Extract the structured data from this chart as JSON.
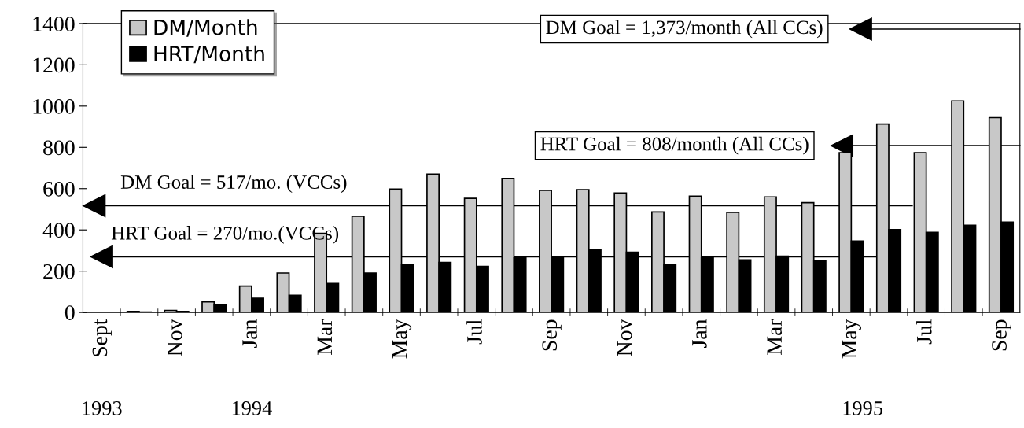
{
  "chart_data": {
    "type": "bar",
    "categories": [
      "Sept",
      null,
      "Nov",
      null,
      "Jan",
      null,
      "Mar",
      null,
      "May",
      null,
      "Jul",
      null,
      "Sep",
      null,
      "Nov",
      null,
      "Jan",
      null,
      "Mar",
      null,
      "May",
      null,
      "Jul",
      null,
      "Sep"
    ],
    "series": [
      {
        "name": "DM/Month",
        "color": "#c8c8c8",
        "values": [
          null,
          5,
          10,
          51,
          128,
          191,
          383,
          466,
          598,
          670,
          553,
          649,
          592,
          595,
          579,
          487,
          563,
          485,
          560,
          532,
          774,
          913,
          774,
          1025,
          944
        ]
      },
      {
        "name": "HRT/Month",
        "color": "#000000",
        "values": [
          null,
          2,
          5,
          35,
          69,
          83,
          140,
          191,
          230,
          242,
          223,
          264,
          264,
          303,
          292,
          232,
          264,
          255,
          273,
          251,
          346,
          401,
          388,
          422,
          438
        ]
      }
    ],
    "ylim": [
      0,
      1400
    ],
    "yticks": [
      0,
      200,
      400,
      600,
      800,
      1000,
      1200,
      1400
    ],
    "ref_lines": [
      {
        "axis": "y",
        "value": 1373,
        "label": "DM Goal = 1,373/month (All CCs)",
        "color": "#000000"
      },
      {
        "axis": "y",
        "value": 808,
        "label": "HRT Goal = 808/month (All CCs)",
        "color": "#000000"
      },
      {
        "axis": "y",
        "value": 517,
        "label": "DM Goal = 517/mo. (VCCs)",
        "color": "#000000"
      },
      {
        "axis": "y",
        "value": 270,
        "label": "HRT Goal = 270/mo.(VCCs)",
        "color": "#000000"
      }
    ],
    "annotations": [
      "1993",
      "1994",
      "1995"
    ],
    "grid": false,
    "legend": "top left"
  }
}
